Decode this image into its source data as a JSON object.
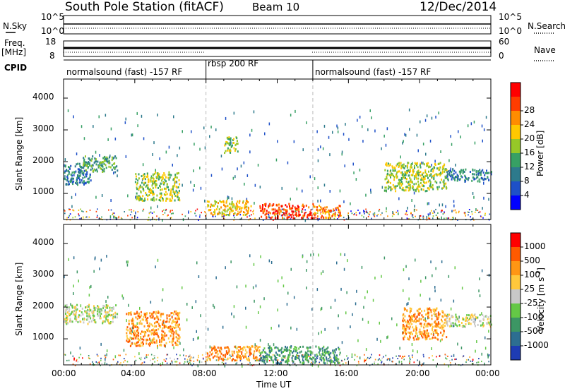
{
  "header": {
    "station": "South Pole Station (fitACF)",
    "beam": "Beam 10",
    "date": "12/Dec/2014"
  },
  "strips": {
    "nsky_label": "N.Sky",
    "nsky_ticks": [
      "10^5",
      "10^0"
    ],
    "nsearch_label": "N.Search",
    "nsearch_ticks": [
      "10^5",
      "10^0"
    ],
    "freq_label": "Freq.",
    "freq_unit": "[MHz]",
    "freq_ticks": [
      "18",
      "8"
    ],
    "nave_label": "Nave",
    "nave_ticks": [
      "60",
      "0"
    ],
    "cpid_label": "CPID",
    "cpid_segments": [
      {
        "label": "normalsound (fast) -157 RF",
        "start_hour": 0,
        "end_hour": 8
      },
      {
        "label": "rbsp 200 RF",
        "start_hour": 8,
        "end_hour": 14
      },
      {
        "label": "normalsound (fast) -157 RF",
        "start_hour": 14,
        "end_hour": 24
      }
    ]
  },
  "chart_data": [
    {
      "type": "heatmap",
      "panel": "power",
      "ylabel": "Slant Range [km]",
      "yticks": [
        "1000",
        "2000",
        "3000",
        "4000"
      ],
      "ylim": [
        180,
        4600
      ],
      "xlim": [
        0,
        24
      ],
      "colorbar": {
        "label": "Power [dB]",
        "ticks": [
          "4",
          "8",
          "12",
          "16",
          "20",
          "24",
          "28"
        ],
        "colors": [
          "#0000ff",
          "#1e50c8",
          "#2d7a8c",
          "#37a064",
          "#96c828",
          "#ffc800",
          "#ff8c00",
          "#ff3c00",
          "#ff0000"
        ]
      },
      "echo_regions": [
        {
          "t0": 0.0,
          "t1": 1.5,
          "r0": 1300,
          "r1": 2000,
          "level": 2
        },
        {
          "t0": 1.0,
          "t1": 3.0,
          "r0": 1700,
          "r1": 2200,
          "level": 3
        },
        {
          "t0": 4.0,
          "t1": 6.5,
          "r0": 800,
          "r1": 1700,
          "level": 4
        },
        {
          "t0": 8.0,
          "t1": 10.5,
          "r0": 350,
          "r1": 800,
          "level": 5
        },
        {
          "t0": 9.0,
          "t1": 9.8,
          "r0": 2300,
          "r1": 2800,
          "level": 4
        },
        {
          "t0": 11.0,
          "t1": 14.0,
          "r0": 250,
          "r1": 700,
          "level": 7
        },
        {
          "t0": 14.0,
          "t1": 15.5,
          "r0": 250,
          "r1": 650,
          "level": 6
        },
        {
          "t0": 18.0,
          "t1": 21.5,
          "r0": 1100,
          "r1": 2000,
          "level": 4
        },
        {
          "t0": 21.5,
          "t1": 24.0,
          "r0": 1400,
          "r1": 1800,
          "level": 2
        }
      ]
    },
    {
      "type": "heatmap",
      "panel": "velocity",
      "ylabel": "Slant Range [km]",
      "yticks": [
        "1000",
        "2000",
        "3000",
        "4000"
      ],
      "ylim": [
        180,
        4600
      ],
      "xlim": [
        0,
        24
      ],
      "xticks": [
        "00:00",
        "04:00",
        "08:00",
        "12:00",
        "16:00",
        "20:00",
        "00:00"
      ],
      "xlabel": "Time UT",
      "colorbar": {
        "label": "Velocity [m s^-1]",
        "ticks": [
          "1000",
          "500",
          "100",
          "25",
          "-25",
          "-100",
          "-500",
          "-1000"
        ],
        "colors": [
          "#1e3cb4",
          "#2d6e91",
          "#3c9664",
          "#64c846",
          "#c8c8c8",
          "#ffc83c",
          "#ff9614",
          "#ff5a00",
          "#ff0000"
        ]
      },
      "echo_regions": [
        {
          "t0": 0.0,
          "t1": 3.0,
          "r0": 1500,
          "r1": 2100,
          "level": 4
        },
        {
          "t0": 3.5,
          "t1": 6.5,
          "r0": 800,
          "r1": 1900,
          "level": 6
        },
        {
          "t0": 8.0,
          "t1": 11.0,
          "r0": 350,
          "r1": 800,
          "level": 6
        },
        {
          "t0": 11.0,
          "t1": 15.5,
          "r0": 250,
          "r1": 800,
          "level": 2
        },
        {
          "t0": 19.0,
          "t1": 21.5,
          "r0": 1000,
          "r1": 2000,
          "level": 6
        },
        {
          "t0": 21.5,
          "t1": 24.0,
          "r0": 1400,
          "r1": 1800,
          "level": 4
        }
      ]
    }
  ]
}
